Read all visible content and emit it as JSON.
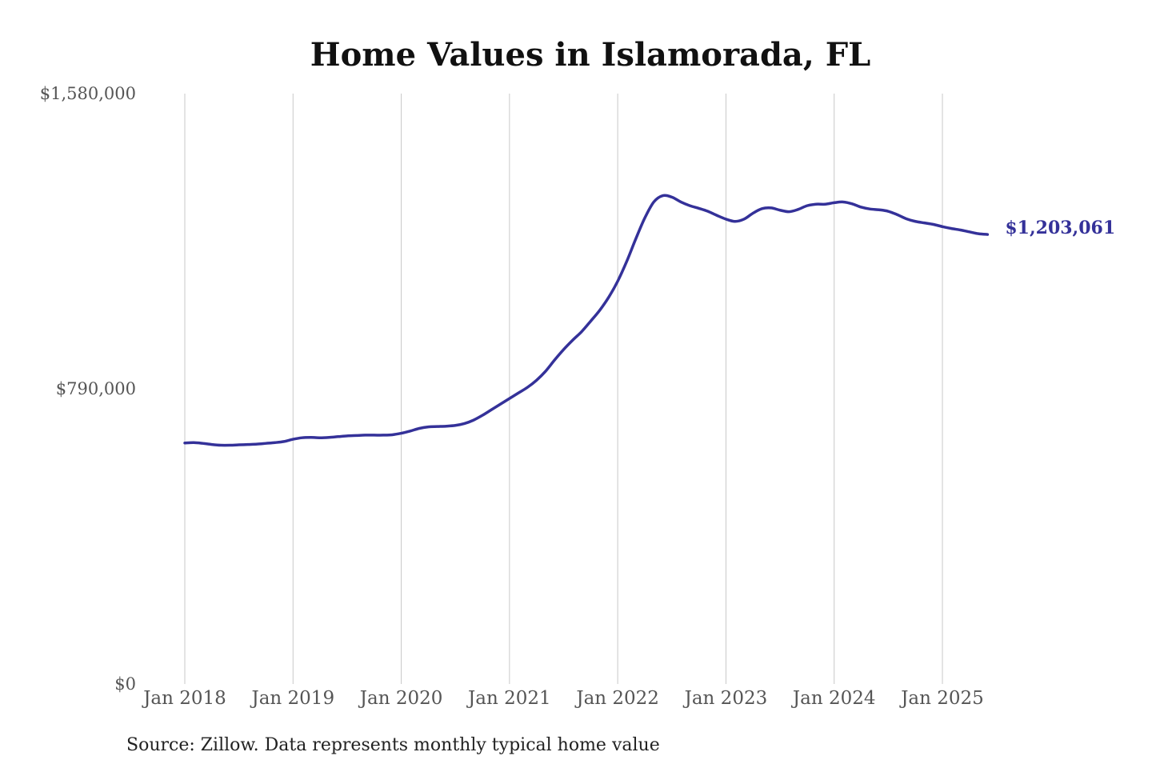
{
  "chart_data": {
    "type": "line",
    "title": "Home Values in Islamorada, FL",
    "xlabel": "",
    "ylabel": "",
    "ylim": [
      0,
      1580000
    ],
    "y_ticks": [
      {
        "value": 0,
        "label": "$0"
      },
      {
        "value": 790000,
        "label": "$790,000"
      },
      {
        "value": 1580000,
        "label": "$1,580,000"
      }
    ],
    "x_ticks": [
      {
        "date": "2018-01",
        "label": "Jan 2018"
      },
      {
        "date": "2019-01",
        "label": "Jan 2019"
      },
      {
        "date": "2020-01",
        "label": "Jan 2020"
      },
      {
        "date": "2021-01",
        "label": "Jan 2021"
      },
      {
        "date": "2022-01",
        "label": "Jan 2022"
      },
      {
        "date": "2023-01",
        "label": "Jan 2023"
      },
      {
        "date": "2024-01",
        "label": "Jan 2024"
      },
      {
        "date": "2025-01",
        "label": "Jan 2025"
      }
    ],
    "grid": {
      "vertical": true,
      "horizontal": false
    },
    "line_color": "#343199",
    "end_label": "$1,203,061",
    "series": [
      {
        "x": [
          "2018-01",
          "2018-02",
          "2018-03",
          "2018-04",
          "2018-05",
          "2018-06",
          "2018-07",
          "2018-08",
          "2018-09",
          "2018-10",
          "2018-11",
          "2018-12",
          "2019-01",
          "2019-02",
          "2019-03",
          "2019-04",
          "2019-05",
          "2019-06",
          "2019-07",
          "2019-08",
          "2019-09",
          "2019-10",
          "2019-11",
          "2019-12",
          "2020-01",
          "2020-02",
          "2020-03",
          "2020-04",
          "2020-05",
          "2020-06",
          "2020-07",
          "2020-08",
          "2020-09",
          "2020-10",
          "2020-11",
          "2020-12",
          "2021-01",
          "2021-02",
          "2021-03",
          "2021-04",
          "2021-05",
          "2021-06",
          "2021-07",
          "2021-08",
          "2021-09",
          "2021-10",
          "2021-11",
          "2021-12",
          "2022-01",
          "2022-02",
          "2022-03",
          "2022-04",
          "2022-05",
          "2022-06",
          "2022-07",
          "2022-08",
          "2022-09",
          "2022-10",
          "2022-11",
          "2022-12",
          "2023-01",
          "2023-02",
          "2023-03",
          "2023-04",
          "2023-05",
          "2023-06",
          "2023-07",
          "2023-08",
          "2023-09",
          "2023-10",
          "2023-11",
          "2023-12",
          "2024-01",
          "2024-02",
          "2024-03",
          "2024-04",
          "2024-05",
          "2024-06",
          "2024-07",
          "2024-08",
          "2024-09",
          "2024-10",
          "2024-11",
          "2024-12",
          "2025-01",
          "2025-02",
          "2025-03",
          "2025-04",
          "2025-05",
          "2025-06"
        ],
        "values": [
          645000,
          646000,
          644000,
          641000,
          639000,
          639000,
          640000,
          641000,
          642000,
          644000,
          646000,
          649000,
          655000,
          659000,
          660000,
          659000,
          660000,
          662000,
          664000,
          665000,
          666000,
          666000,
          666000,
          667000,
          671000,
          677000,
          684000,
          688000,
          689000,
          690000,
          692000,
          697000,
          706000,
          719000,
          734000,
          749000,
          764000,
          779000,
          794000,
          813000,
          837000,
          867000,
          895000,
          920000,
          943000,
          971000,
          1000000,
          1035000,
          1078000,
          1131000,
          1191000,
          1247000,
          1290000,
          1307000,
          1303000,
          1290000,
          1280000,
          1273000,
          1265000,
          1254000,
          1244000,
          1238000,
          1244000,
          1260000,
          1272000,
          1274000,
          1268000,
          1264000,
          1270000,
          1280000,
          1284000,
          1284000,
          1288000,
          1290000,
          1285000,
          1276000,
          1271000,
          1269000,
          1265000,
          1256000,
          1245000,
          1238000,
          1234000,
          1230000,
          1224000,
          1219000,
          1215000,
          1210000,
          1205000,
          1203061
        ]
      }
    ]
  },
  "source_note": "Source: Zillow. Data represents monthly typical home value"
}
